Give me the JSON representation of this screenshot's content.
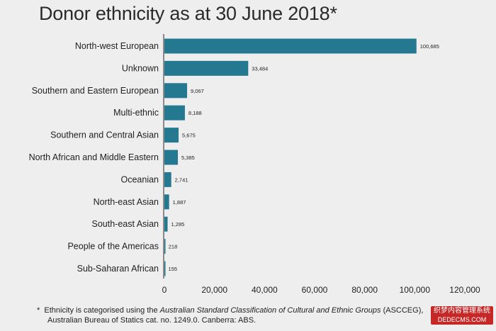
{
  "title": "Donor ethnicity as at 30 June 2018*",
  "chart_data": {
    "type": "bar",
    "orientation": "horizontal",
    "title": "Donor ethnicity as at 30 June 2018*",
    "categories": [
      "North-west European",
      "Unknown",
      "Southern and Eastern European",
      "Multi-ethnic",
      "Southern and Central Asian",
      "North African and Middle Eastern",
      "Oceanian",
      "North-east Asian",
      "South-east Asian",
      "People of the Americas",
      "Sub-Saharan African"
    ],
    "values": [
      100685,
      33484,
      9067,
      8188,
      5675,
      5385,
      2741,
      1887,
      1285,
      218,
      155
    ],
    "value_labels": [
      "100,685",
      "33,484",
      "9,067",
      "8,188",
      "5,675",
      "5,385",
      "2,741",
      "1,887",
      "1,285",
      "218",
      "155"
    ],
    "xlim": [
      0,
      120000
    ],
    "xticks": [
      0,
      20000,
      40000,
      60000,
      80000,
      100000,
      120000
    ],
    "xtick_labels": [
      "0",
      "20,000",
      "40,000",
      "60,000",
      "80,000",
      "100,000",
      "120,000"
    ],
    "xlabel": "",
    "ylabel": "",
    "grid": false,
    "bar_color": "#24788f",
    "axis_color": "#555555"
  },
  "footnote": {
    "marker": "*",
    "text_before": "Ethnicity is categorised using the ",
    "text_italic": "Australian Standard Classification of Cultural and Ethnic Groups",
    "text_after": " (ASCCEG),",
    "line2": "Australian Bureau of Statics cat. no. 1249.0. Canberra: ABS."
  },
  "watermark": {
    "line1": "织梦内容管理系统",
    "line2": "DEDECMS.COM"
  }
}
